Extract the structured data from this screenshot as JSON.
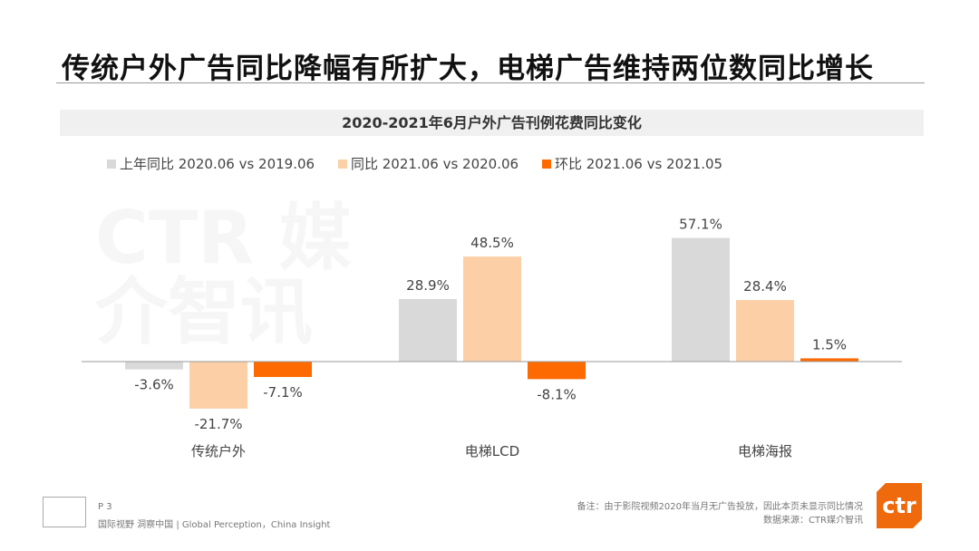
{
  "title": "传统户外广告同比降幅有所扩大，电梯广告维持两位数同比增长",
  "chart_data": {
    "type": "bar",
    "title": "2020-2021年6月户外广告刊例花费同比变化",
    "categories": [
      "传统户外",
      "电梯LCD",
      "电梯海报"
    ],
    "series": [
      {
        "name": "上年同比 2020.06 vs 2019.06",
        "color": "#d9d9d9",
        "values": [
          -3.6,
          28.9,
          57.1
        ],
        "labels": [
          "-3.6%",
          "28.9%",
          "57.1%"
        ]
      },
      {
        "name": "同比 2021.06 vs 2020.06",
        "color": "#fccfa6",
        "values": [
          -21.7,
          48.5,
          28.4
        ],
        "labels": [
          "-21.7%",
          "48.5%",
          "28.4%"
        ]
      },
      {
        "name": "环比 2021.06 vs 2021.05",
        "color": "#fd6a02",
        "values": [
          -7.1,
          -8.1,
          1.5
        ],
        "labels": [
          "-7.1%",
          "-8.1%",
          "1.5%"
        ]
      }
    ],
    "legend": "top-left",
    "grid": false
  },
  "watermark": "CTR 媒介智讯",
  "footer": {
    "page": "P 3",
    "slogan": "国际视野  洞察中国 | Global Perception，China Insight",
    "note": "备注：由于影院视频2020年当月无广告投放，因此本页未显示同比情况",
    "source": "数据来源：CTR媒介智讯",
    "logo": "ctr"
  }
}
